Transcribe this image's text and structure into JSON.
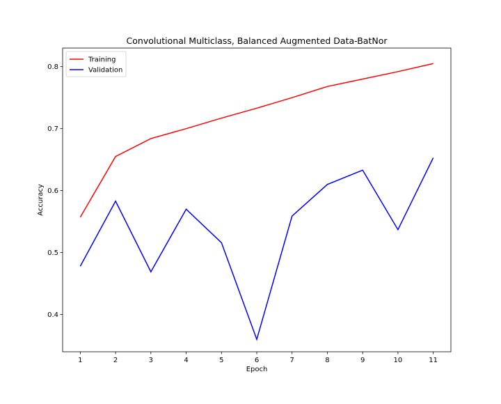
{
  "chart_data": {
    "type": "line",
    "title": "Convolutional Multiclass, Balanced Augmented Data-BatNor",
    "xlabel": "Epoch",
    "ylabel": "Accuracy",
    "x": [
      1,
      2,
      3,
      4,
      5,
      6,
      7,
      8,
      9,
      10,
      11
    ],
    "xlim": [
      0.5,
      11.5
    ],
    "ylim": [
      0.34,
      0.83
    ],
    "xticks": [
      1,
      2,
      3,
      4,
      5,
      6,
      7,
      8,
      9,
      10,
      11
    ],
    "yticks": [
      0.4,
      0.5,
      0.6,
      0.7,
      0.8
    ],
    "ytick_labels": [
      "0.4",
      "0.5",
      "0.6",
      "0.7",
      "0.8"
    ],
    "grid": false,
    "legend": "top-left",
    "series": [
      {
        "name": "Training",
        "color": "#ff0000",
        "values": [
          0.557,
          0.655,
          0.684,
          0.7,
          0.717,
          0.733,
          0.75,
          0.768,
          0.78,
          0.792,
          0.805
        ]
      },
      {
        "name": "Validation",
        "color": "#0000ff",
        "values": [
          0.478,
          0.583,
          0.469,
          0.57,
          0.516,
          0.36,
          0.559,
          0.61,
          0.633,
          0.537,
          0.653
        ]
      }
    ]
  }
}
